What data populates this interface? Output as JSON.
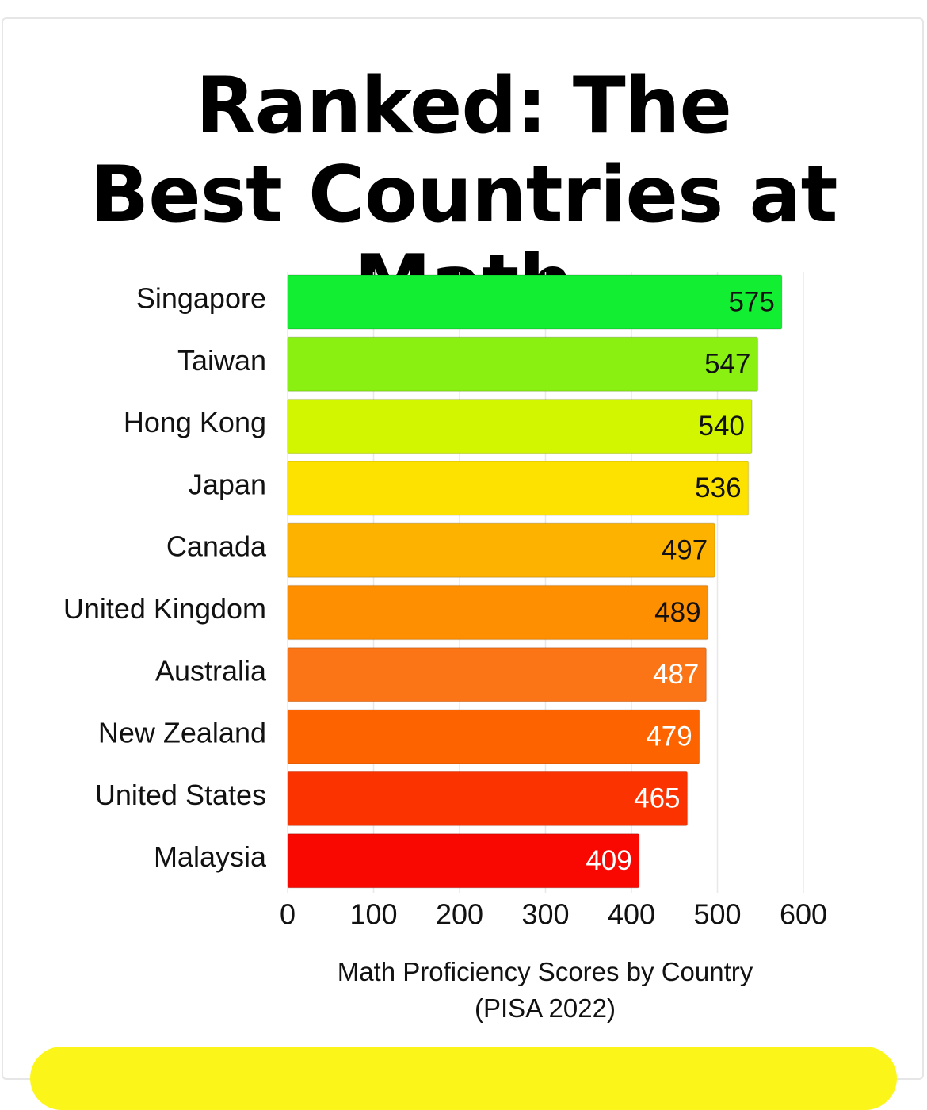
{
  "chart_data": {
    "type": "hbar",
    "title": "Ranked: The Best Countries at Math",
    "xlabel": "Math Proficiency Scores by Country (PISA 2022)",
    "categories": [
      "Singapore",
      "Taiwan",
      "Hong Kong",
      "Japan",
      "Canada",
      "United Kingdom",
      "Australia",
      "New Zealand",
      "United States",
      "Malaysia"
    ],
    "values": [
      575,
      547,
      540,
      536,
      497,
      489,
      487,
      479,
      465,
      409
    ],
    "colors": [
      "#12ee32",
      "#8af012",
      "#d2f500",
      "#fde200",
      "#fdb200",
      "#fd8f00",
      "#fb7416",
      "#fd6400",
      "#fb3300",
      "#f80800"
    ],
    "xlim": [
      0,
      600
    ],
    "xticks": [
      0,
      100,
      200,
      300,
      400,
      500,
      600
    ],
    "grid": true
  }
}
